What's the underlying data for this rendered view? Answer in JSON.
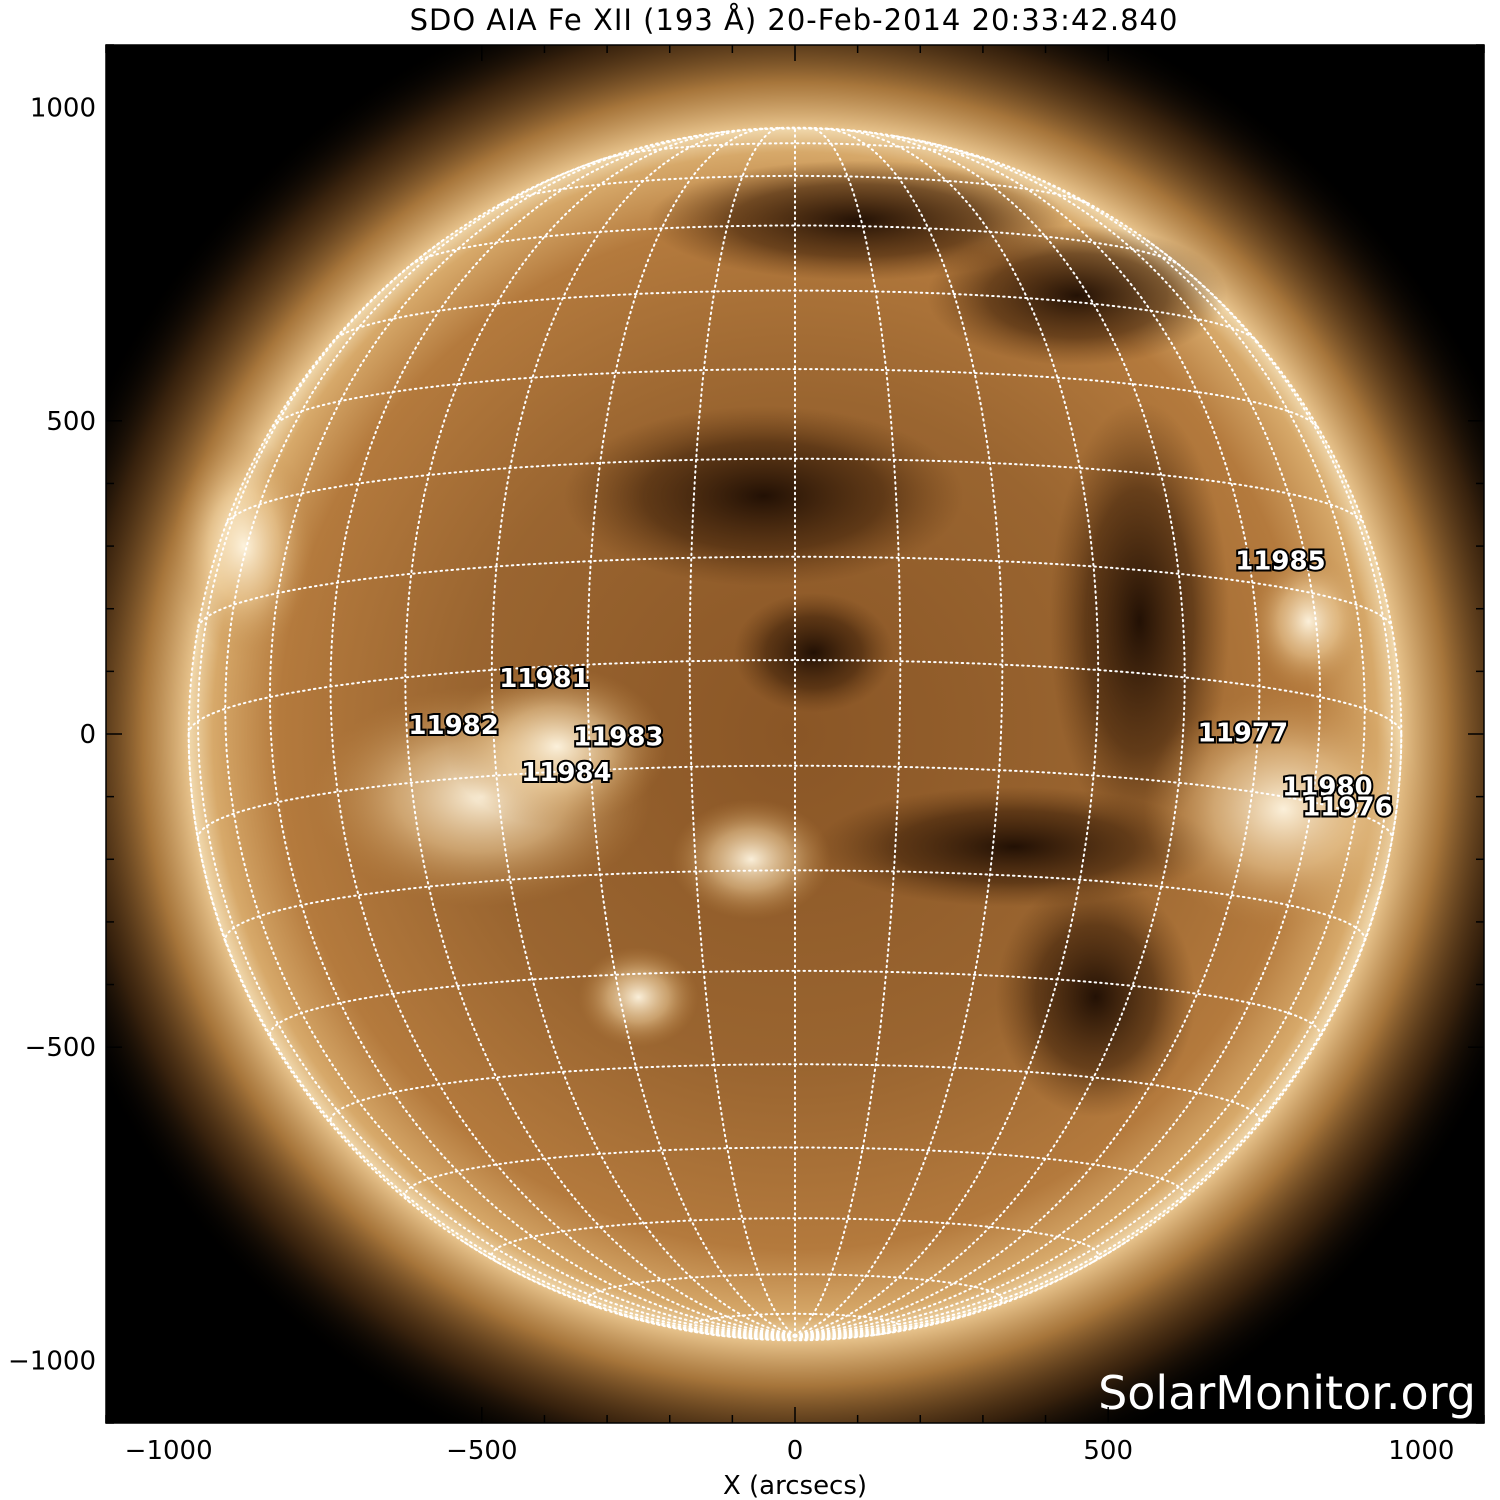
{
  "title": "SDO AIA Fe XII (193 Å) 20-Feb-2014 20:33:42.840",
  "watermark": "SolarMonitor.org",
  "x_axis": {
    "label": "X (arcsecs)",
    "range": [
      -1100,
      1100
    ],
    "ticks": [
      {
        "value": -1000,
        "label": "−1000"
      },
      {
        "value": -500,
        "label": "−500"
      },
      {
        "value": 0,
        "label": "0"
      },
      {
        "value": 500,
        "label": "500"
      },
      {
        "value": 1000,
        "label": "1000"
      }
    ]
  },
  "y_axis": {
    "label": "",
    "range": [
      -1100,
      1100
    ],
    "ticks": [
      {
        "value": 1000,
        "label": "1000"
      },
      {
        "value": 500,
        "label": "500"
      },
      {
        "value": 0,
        "label": "0"
      },
      {
        "value": -500,
        "label": "−500"
      },
      {
        "value": -1000,
        "label": "−1000"
      }
    ]
  },
  "solar_radius_arcsec": 968,
  "grid_spacing_deg": 10,
  "colors": {
    "background": "#000000",
    "disk_light": "#c89655",
    "disk_dark": "#6e3f17",
    "limb_glow": "#f7e4c0",
    "grid": "#ffffff"
  },
  "active_regions": [
    {
      "id": "11985",
      "x": 775,
      "y": 263
    },
    {
      "id": "11981",
      "x": -400,
      "y": 75
    },
    {
      "id": "11982",
      "x": -545,
      "y": 0
    },
    {
      "id": "11983",
      "x": -282,
      "y": -18
    },
    {
      "id": "11977",
      "x": 715,
      "y": -12
    },
    {
      "id": "11984",
      "x": -365,
      "y": -75
    },
    {
      "id": "11980",
      "x": 850,
      "y": -98
    },
    {
      "id": "11976",
      "x": 882,
      "y": -130
    }
  ]
}
